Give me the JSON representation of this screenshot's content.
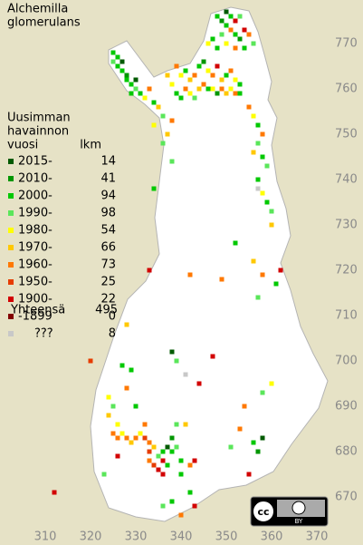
{
  "title": [
    "Alchemilla",
    "glomerulans"
  ],
  "legend": {
    "header": [
      "Uusimman",
      "havainnon",
      "vuosi"
    ],
    "count_header": "lkm",
    "rows": [
      {
        "label": "2015-",
        "count": 14,
        "color": "#005a00"
      },
      {
        "label": "2010-",
        "count": 41,
        "color": "#009600"
      },
      {
        "label": "2000-",
        "count": 94,
        "color": "#00c800"
      },
      {
        "label": "1990-",
        "count": 98,
        "color": "#5ae65a"
      },
      {
        "label": "1980-",
        "count": 54,
        "color": "#ffff00"
      },
      {
        "label": "1970-",
        "count": 66,
        "color": "#ffc800"
      },
      {
        "label": "1960-",
        "count": 73,
        "color": "#ff7800"
      },
      {
        "label": "1950-",
        "count": 25,
        "color": "#e63c00"
      },
      {
        "label": "1900-",
        "count": 22,
        "color": "#d20000"
      },
      {
        "label": "-1899",
        "count": 0,
        "color": "#820000"
      },
      {
        "label": "???",
        "count": 8,
        "color": "#c8c8c8"
      }
    ],
    "total": {
      "label": "Yhteensä",
      "count": 495
    }
  },
  "xticks": [
    310,
    320,
    330,
    340,
    350,
    360,
    370
  ],
  "yticks": [
    670,
    680,
    690,
    700,
    710,
    720,
    730,
    740,
    750,
    760,
    770
  ],
  "license": "BY",
  "records": [
    [
      325,
      768,
      2
    ],
    [
      326,
      767,
      2
    ],
    [
      327,
      766,
      0
    ],
    [
      326,
      765,
      2
    ],
    [
      327,
      764,
      2
    ],
    [
      328,
      763,
      1
    ],
    [
      328,
      762,
      2
    ],
    [
      329,
      761,
      2
    ],
    [
      330,
      760,
      3
    ],
    [
      329,
      759,
      2
    ],
    [
      331,
      759,
      2
    ],
    [
      330,
      762,
      0
    ],
    [
      325,
      766,
      3
    ],
    [
      332,
      758,
      4
    ],
    [
      333,
      760,
      6
    ],
    [
      348,
      776,
      2
    ],
    [
      349,
      775,
      1
    ],
    [
      350,
      777,
      0
    ],
    [
      351,
      776,
      2
    ],
    [
      352,
      775,
      8
    ],
    [
      353,
      776,
      3
    ],
    [
      350,
      774,
      2
    ],
    [
      349,
      772,
      3
    ],
    [
      351,
      773,
      6
    ],
    [
      352,
      772,
      2
    ],
    [
      353,
      771,
      1
    ],
    [
      354,
      773,
      8
    ],
    [
      355,
      772,
      6
    ],
    [
      356,
      770,
      3
    ],
    [
      347,
      771,
      2
    ],
    [
      346,
      770,
      4
    ],
    [
      348,
      769,
      2
    ],
    [
      350,
      770,
      4
    ],
    [
      352,
      769,
      6
    ],
    [
      354,
      769,
      2
    ],
    [
      339,
      765,
      6
    ],
    [
      340,
      763,
      4
    ],
    [
      341,
      764,
      2
    ],
    [
      342,
      762,
      5
    ],
    [
      343,
      763,
      6
    ],
    [
      344,
      765,
      2
    ],
    [
      345,
      766,
      1
    ],
    [
      346,
      764,
      4
    ],
    [
      347,
      763,
      6
    ],
    [
      348,
      765,
      8
    ],
    [
      349,
      762,
      5
    ],
    [
      350,
      763,
      2
    ],
    [
      351,
      764,
      6
    ],
    [
      352,
      762,
      4
    ],
    [
      353,
      761,
      2
    ],
    [
      344,
      760,
      5
    ],
    [
      345,
      761,
      6
    ],
    [
      346,
      760,
      2
    ],
    [
      347,
      760,
      4
    ],
    [
      348,
      759,
      1
    ],
    [
      349,
      760,
      6
    ],
    [
      350,
      759,
      5
    ],
    [
      351,
      760,
      4
    ],
    [
      352,
      759,
      6
    ],
    [
      353,
      759,
      2
    ],
    [
      341,
      760,
      6
    ],
    [
      342,
      759,
      4
    ],
    [
      339,
      759,
      2
    ],
    [
      338,
      761,
      4
    ],
    [
      337,
      763,
      5
    ],
    [
      343,
      758,
      3
    ],
    [
      340,
      758,
      2
    ],
    [
      335,
      756,
      5
    ],
    [
      336,
      754,
      3
    ],
    [
      334,
      752,
      4
    ],
    [
      337,
      750,
      5
    ],
    [
      338,
      753,
      6
    ],
    [
      336,
      748,
      3
    ],
    [
      334,
      757,
      2
    ],
    [
      355,
      756,
      6
    ],
    [
      356,
      754,
      4
    ],
    [
      357,
      752,
      2
    ],
    [
      358,
      750,
      6
    ],
    [
      357,
      748,
      3
    ],
    [
      356,
      746,
      5
    ],
    [
      358,
      745,
      2
    ],
    [
      359,
      743,
      3
    ],
    [
      357,
      740,
      2
    ],
    [
      358,
      737,
      4
    ],
    [
      359,
      735,
      2
    ],
    [
      360,
      733,
      3
    ],
    [
      360,
      730,
      5
    ],
    [
      357,
      738,
      10
    ],
    [
      352,
      726,
      2
    ],
    [
      349,
      718,
      6
    ],
    [
      356,
      722,
      5
    ],
    [
      358,
      719,
      6
    ],
    [
      361,
      717,
      2
    ],
    [
      357,
      714,
      3
    ],
    [
      362,
      720,
      8
    ],
    [
      334,
      738,
      2
    ],
    [
      338,
      744,
      3
    ],
    [
      328,
      708,
      5
    ],
    [
      342,
      719,
      6
    ],
    [
      333,
      720,
      8
    ],
    [
      324,
      692,
      4
    ],
    [
      325,
      690,
      3
    ],
    [
      324,
      688,
      5
    ],
    [
      326,
      686,
      4
    ],
    [
      325,
      684,
      6
    ],
    [
      326,
      683,
      6
    ],
    [
      327,
      684,
      4
    ],
    [
      328,
      683,
      6
    ],
    [
      329,
      682,
      5
    ],
    [
      330,
      683,
      6
    ],
    [
      331,
      684,
      4
    ],
    [
      332,
      683,
      7
    ],
    [
      333,
      682,
      6
    ],
    [
      334,
      681,
      5
    ],
    [
      332,
      686,
      6
    ],
    [
      333,
      680,
      7
    ],
    [
      335,
      679,
      3
    ],
    [
      336,
      680,
      2
    ],
    [
      337,
      681,
      0
    ],
    [
      338,
      680,
      2
    ],
    [
      339,
      681,
      3
    ],
    [
      338,
      683,
      1
    ],
    [
      336,
      678,
      8
    ],
    [
      335,
      676,
      8
    ],
    [
      336,
      675,
      8
    ],
    [
      334,
      677,
      7
    ],
    [
      337,
      677,
      2
    ],
    [
      340,
      678,
      2
    ],
    [
      342,
      677,
      6
    ],
    [
      340,
      675,
      2
    ],
    [
      343,
      678,
      8
    ],
    [
      339,
      686,
      3
    ],
    [
      341,
      686,
      5
    ],
    [
      328,
      694,
      6
    ],
    [
      330,
      690,
      2
    ],
    [
      329,
      698,
      2
    ],
    [
      338,
      702,
      0
    ],
    [
      339,
      700,
      3
    ],
    [
      341,
      697,
      10
    ],
    [
      344,
      695,
      8
    ],
    [
      347,
      701,
      8
    ],
    [
      360,
      695,
      4
    ],
    [
      358,
      693,
      3
    ],
    [
      354,
      690,
      6
    ],
    [
      353,
      685,
      6
    ],
    [
      358,
      683,
      0
    ],
    [
      356,
      682,
      2
    ],
    [
      357,
      680,
      1
    ],
    [
      355,
      675,
      8
    ],
    [
      351,
      681,
      3
    ],
    [
      333,
      678,
      6
    ],
    [
      343,
      668,
      8
    ],
    [
      340,
      666,
      6
    ],
    [
      338,
      669,
      2
    ],
    [
      336,
      668,
      3
    ],
    [
      342,
      671,
      2
    ],
    [
      312,
      671,
      8
    ],
    [
      320,
      700,
      7
    ],
    [
      327,
      699,
      2
    ],
    [
      323,
      675,
      3
    ],
    [
      326,
      679,
      8
    ]
  ]
}
